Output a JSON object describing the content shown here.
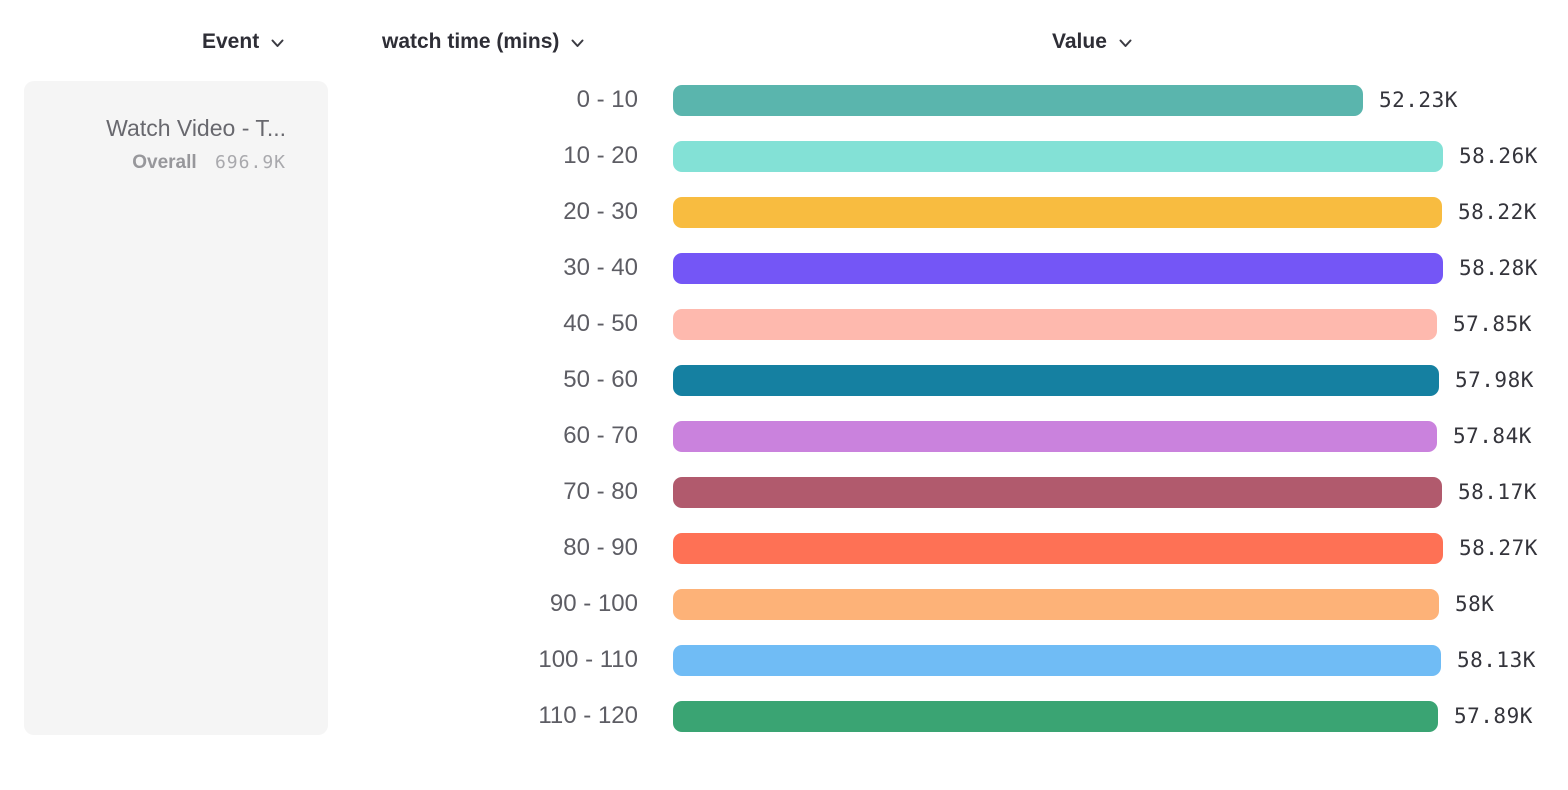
{
  "columns": {
    "event": {
      "label": "Event"
    },
    "breakdown": {
      "label": "watch time (mins)"
    },
    "value": {
      "label": "Value"
    }
  },
  "event_card": {
    "title": "Watch Video - T...",
    "overall_label": "Overall",
    "overall_value": "696.9K"
  },
  "chart_data": {
    "type": "bar",
    "orientation": "horizontal",
    "title": "",
    "xlabel": "Value",
    "ylabel": "watch time (mins)",
    "xlim": [
      0,
      58280
    ],
    "grid": false,
    "legend": false,
    "categories": [
      "0 - 10",
      "10 - 20",
      "20 - 30",
      "30 - 40",
      "40 - 50",
      "50 - 60",
      "60 - 70",
      "70 - 80",
      "80 - 90",
      "90 - 100",
      "100 - 110",
      "110 - 120"
    ],
    "values": [
      52230,
      58260,
      58220,
      58280,
      57850,
      57980,
      57840,
      58170,
      58270,
      58000,
      58130,
      57890
    ],
    "value_labels": [
      "52.23K",
      "58.26K",
      "58.22K",
      "58.28K",
      "57.85K",
      "57.98K",
      "57.84K",
      "58.17K",
      "58.27K",
      "58K",
      "58.13K",
      "57.89K"
    ],
    "bar_colors": [
      "#5ab5ad",
      "#83e1d6",
      "#f8bc40",
      "#7456f6",
      "#feb9ae",
      "#1580a1",
      "#ca82dd",
      "#b15a6d",
      "#fe7155",
      "#fdb278",
      "#70bcf5",
      "#3aa473"
    ],
    "chevron_color": "#3b3b42"
  }
}
